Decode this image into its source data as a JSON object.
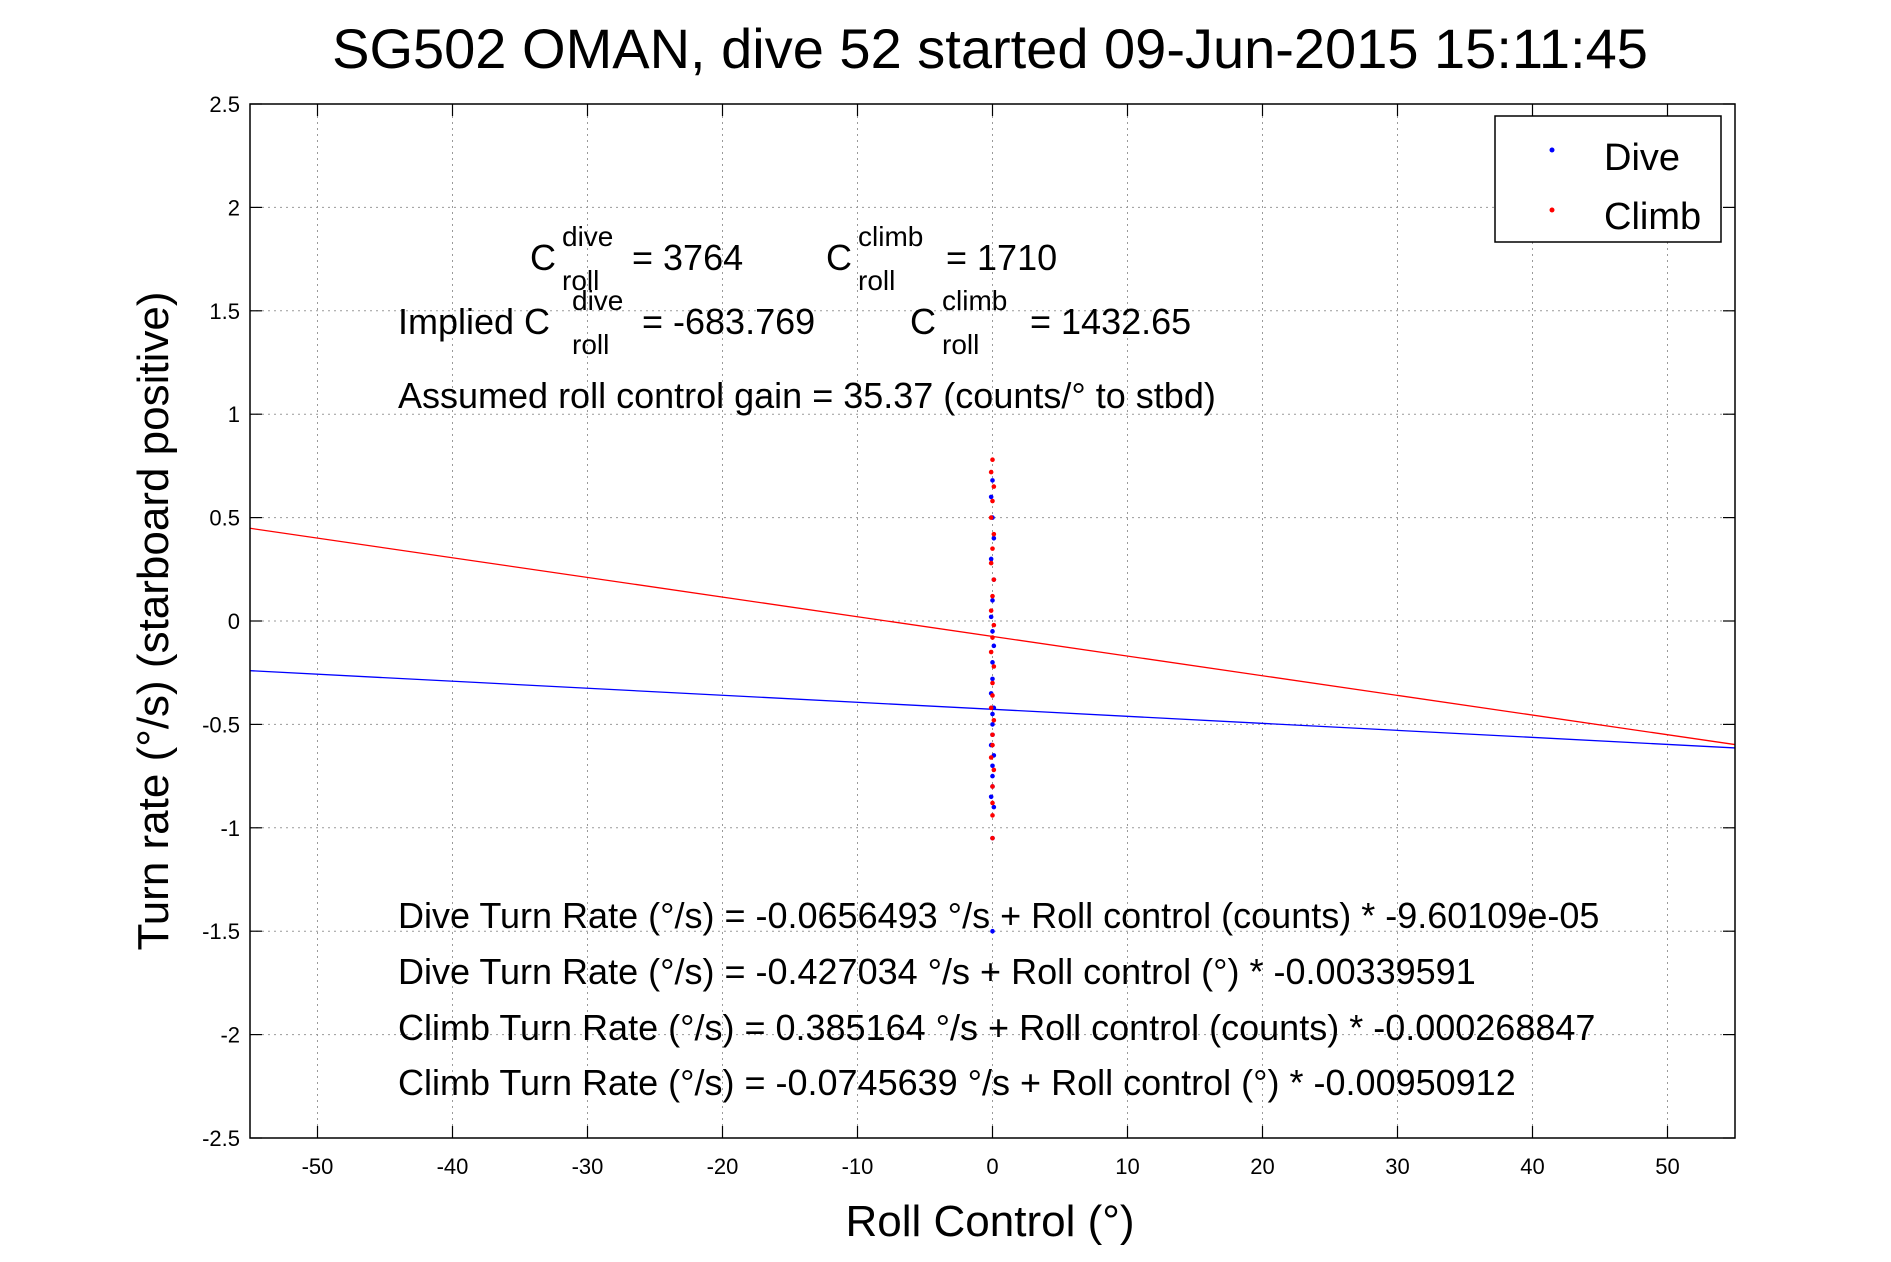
{
  "chart_data": {
    "type": "scatter",
    "title": "SG502 OMAN, dive 52 started 09-Jun-2015 15:11:45",
    "xlabel": "Roll Control (°)",
    "ylabel": "Turn rate (°/s) (starboard positive)",
    "xlim": [
      -55,
      55
    ],
    "ylim": [
      -2.5,
      2.5
    ],
    "xticks": [
      "-50",
      "-40",
      "-30",
      "-20",
      "-10",
      "0",
      "10",
      "20",
      "30",
      "40",
      "50"
    ],
    "yticks": [
      "2.5",
      "2",
      "1.5",
      "1",
      "0.5",
      "0",
      "-0.5",
      "-1",
      "-1.5",
      "-2",
      "-2.5"
    ],
    "grid": true,
    "legend_position": "top-right",
    "series": [
      {
        "name": "Dive",
        "color": "#0000ff",
        "x": [
          0,
          -0.1,
          0,
          0.1,
          -0.1,
          0.1,
          0,
          -0.1,
          0,
          0.1,
          0,
          0,
          -0.1,
          0.1,
          0,
          0,
          -0.1,
          0.1,
          0,
          0,
          0,
          -0.1,
          0.1,
          0,
          0,
          0
        ],
        "y": [
          0.68,
          0.6,
          0.5,
          0.4,
          0.3,
          0.2,
          0.1,
          0.02,
          -0.05,
          -0.12,
          -0.2,
          -0.28,
          -0.35,
          -0.42,
          -0.5,
          -0.55,
          -0.6,
          -0.65,
          -0.7,
          -0.75,
          -0.8,
          -0.85,
          -0.9,
          -1.05,
          -1.5,
          -0.45
        ],
        "fit": {
          "intercept": -0.427034,
          "slope": -0.00339591
        }
      },
      {
        "name": "Climb",
        "color": "#ff0000",
        "x": [
          0,
          -0.1,
          0.1,
          0,
          -0.1,
          0.1,
          0,
          -0.1,
          0.1,
          0,
          -0.1,
          0.1,
          0,
          -0.1,
          0.1,
          0,
          0,
          -0.1,
          0.1,
          0,
          0,
          -0.1,
          0.1,
          0,
          0,
          0,
          0
        ],
        "y": [
          0.78,
          0.72,
          0.65,
          0.58,
          0.5,
          0.42,
          0.35,
          0.28,
          0.2,
          0.12,
          0.05,
          -0.02,
          -0.08,
          -0.15,
          -0.22,
          -0.3,
          -0.36,
          -0.42,
          -0.48,
          -0.55,
          -0.6,
          -0.66,
          -0.72,
          -0.8,
          -0.88,
          -0.94,
          -1.05
        ],
        "fit": {
          "intercept": -0.0745639,
          "slope": -0.00950912
        }
      }
    ]
  },
  "annotations": {
    "c_roll_dive": {
      "c": "C",
      "sup": "dive",
      "sub": "roll",
      "value": "= 3764"
    },
    "c_roll_climb": {
      "c": "C",
      "sup": "climb",
      "sub": "roll",
      "value": "= 1710"
    },
    "implied_prefix": "Implied C",
    "implied_dive": {
      "sup": "dive",
      "sub": "roll",
      "value": "= -683.769"
    },
    "implied_climb": {
      "c": "C",
      "sup": "climb",
      "sub": "roll",
      "value": "= 1432.65"
    },
    "gain": "Assumed roll control gain = 35.37 (counts/° to stbd)",
    "eq1": "Dive Turn Rate (°/s) = -0.0656493 °/s + Roll control (counts) * -9.60109e-05",
    "eq2": "Dive Turn Rate (°/s) = -0.427034 °/s + Roll control (°) * -0.00339591",
    "eq3": "Climb Turn Rate (°/s) = 0.385164 °/s + Roll control (counts) * -0.000268847",
    "eq4": "Climb Turn Rate (°/s) = -0.0745639 °/s + Roll control (°) * -0.00950912"
  }
}
